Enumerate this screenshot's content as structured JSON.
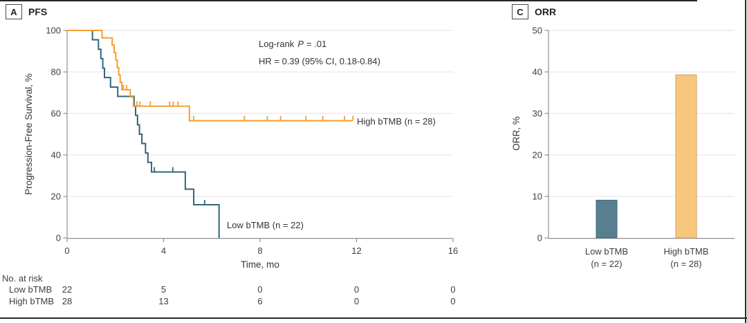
{
  "panel_a": {
    "label": "A",
    "title": "PFS",
    "annotation_logrank": {
      "prefix": "Log-rank",
      "p_italic": "P",
      "rest": "= .01"
    },
    "annotation_hr": "HR = 0.39 (95% CI, 0.18-0.84)"
  },
  "panel_c": {
    "label": "C",
    "title": "ORR"
  },
  "chart_data": [
    {
      "type": "line",
      "subtype": "kaplan-meier",
      "title": "PFS",
      "xlabel": "Time, mo",
      "ylabel": "Progression-Free Survival, %",
      "xlim": [
        0,
        16
      ],
      "ylim": [
        0,
        100
      ],
      "xticks": [
        0,
        4,
        8,
        12,
        16
      ],
      "yticks": [
        0,
        20,
        40,
        60,
        80,
        100
      ],
      "grid": true,
      "annotations": [
        "Log-rank P = .01",
        "HR = 0.39 (95% CI, 0.18-0.84)"
      ],
      "series": [
        {
          "name": "Low bTMB (n = 22)",
          "color": "#31657a",
          "steps": [
            [
              0,
              100
            ],
            [
              1.05,
              95.5
            ],
            [
              1.3,
              90.9
            ],
            [
              1.4,
              86.4
            ],
            [
              1.48,
              81.8
            ],
            [
              1.55,
              77.3
            ],
            [
              1.8,
              72.7
            ],
            [
              2.1,
              68.2
            ],
            [
              2.78,
              63.6
            ],
            [
              2.84,
              59.1
            ],
            [
              2.92,
              54.5
            ],
            [
              3.0,
              50
            ],
            [
              3.1,
              45.5
            ],
            [
              3.25,
              40.9
            ],
            [
              3.35,
              36.4
            ],
            [
              3.5,
              31.8
            ],
            [
              4.9,
              23.5
            ],
            [
              5.25,
              16
            ],
            [
              6.3,
              0
            ]
          ],
          "end": 6.3,
          "censors": [
            [
              3.62,
              31.8
            ],
            [
              4.38,
              31.8
            ],
            [
              5.7,
              16
            ]
          ]
        },
        {
          "name": "High bTMB (n = 28)",
          "color": "#f59e2f",
          "steps": [
            [
              0,
              100
            ],
            [
              1.45,
              96.4
            ],
            [
              1.87,
              92.9
            ],
            [
              1.95,
              89.3
            ],
            [
              2.02,
              85.7
            ],
            [
              2.08,
              82.1
            ],
            [
              2.14,
              78.6
            ],
            [
              2.2,
              75.0
            ],
            [
              2.27,
              71.4
            ],
            [
              2.62,
              67.9
            ],
            [
              2.75,
              63.5
            ],
            [
              5.07,
              56.5
            ]
          ],
          "end": 11.85,
          "censors": [
            [
              2.33,
              71.4
            ],
            [
              2.47,
              71.4
            ],
            [
              2.9,
              63.5
            ],
            [
              3.02,
              63.5
            ],
            [
              3.45,
              63.5
            ],
            [
              4.25,
              63.5
            ],
            [
              4.4,
              63.5
            ],
            [
              4.6,
              63.5
            ],
            [
              5.25,
              56.5
            ],
            [
              7.35,
              56.5
            ],
            [
              8.3,
              56.5
            ],
            [
              8.85,
              56.5
            ],
            [
              9.9,
              56.5
            ],
            [
              10.6,
              56.5
            ],
            [
              11.5,
              56.5
            ],
            [
              11.85,
              56.5
            ]
          ]
        }
      ],
      "at_risk": {
        "title": "No. at risk",
        "times": [
          0,
          4,
          8,
          12,
          16
        ],
        "rows": [
          {
            "name": "Low bTMB",
            "values": [
              22,
              5,
              0,
              0,
              0
            ]
          },
          {
            "name": "High bTMB",
            "values": [
              28,
              13,
              6,
              0,
              0
            ]
          }
        ]
      }
    },
    {
      "type": "bar",
      "title": "ORR",
      "xlabel": "",
      "ylabel": "ORR, %",
      "ylim": [
        0,
        50
      ],
      "yticks": [
        0,
        10,
        20,
        30,
        40,
        50
      ],
      "grid": true,
      "categories": [
        {
          "line1": "Low bTMB",
          "line2": "(n = 22)"
        },
        {
          "line1": "High bTMB",
          "line2": "(n = 28)"
        }
      ],
      "values": [
        9.1,
        39.3
      ],
      "bar_fill": [
        "#577f90",
        "#f8c77e"
      ],
      "bar_stroke": [
        "#41697a",
        "#cf9d62"
      ]
    }
  ]
}
